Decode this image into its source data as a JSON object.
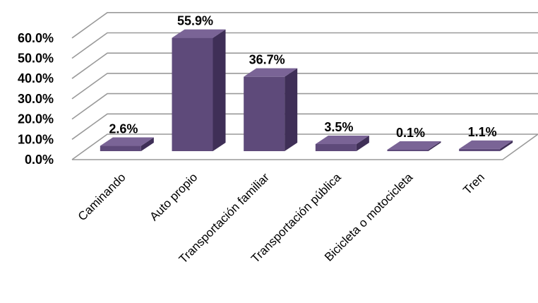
{
  "chart_data": {
    "type": "bar",
    "categories": [
      "Caminando",
      "Auto propio",
      "Transportación familiar",
      "Transportación pública",
      "Bicicleta o motocicleta",
      "Tren"
    ],
    "values": [
      2.6,
      55.9,
      36.7,
      3.5,
      0.1,
      1.1
    ],
    "data_labels": [
      "2.6%",
      "55.9%",
      "36.7%",
      "3.5%",
      "0.1%",
      "1.1%"
    ],
    "y_ticks": [
      "0.0%",
      "10.0%",
      "20.0%",
      "30.0%",
      "40.0%",
      "50.0%",
      "60.0%"
    ],
    "ylim": [
      0,
      60
    ],
    "grid": true,
    "legend": "none",
    "style": "3d-column",
    "colors": {
      "bar_front": "#5e4a7a",
      "bar_side": "#3f2f57",
      "bar_top": "#7a6496",
      "grid": "#9a9a9a"
    }
  }
}
